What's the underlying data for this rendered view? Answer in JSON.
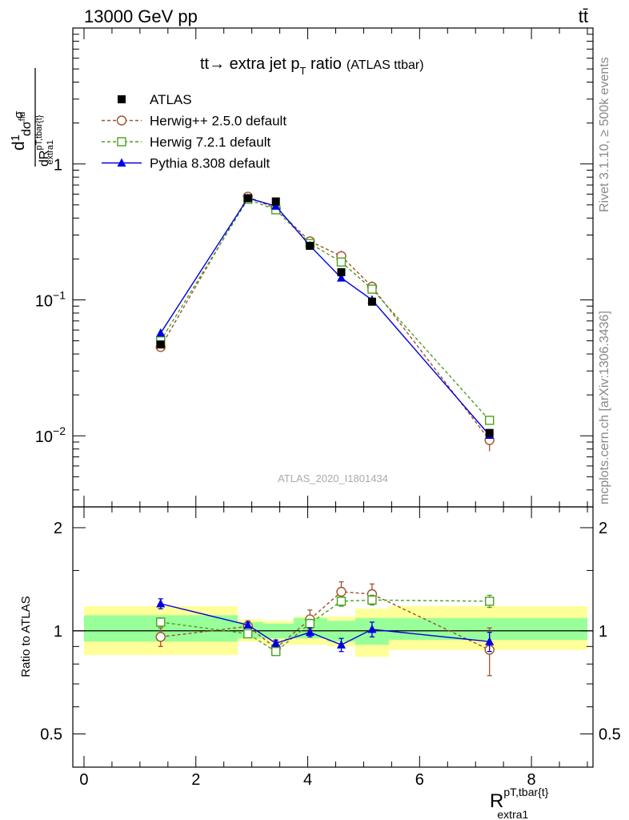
{
  "header": {
    "left": "13000 GeV pp",
    "right": "tt̄"
  },
  "side_texts": {
    "rivet": "Rivet 3.1.10, ≥ 500k events",
    "mcplots": "mcplots.cern.ch [arXiv:1306.3436]"
  },
  "colors": {
    "data": "#000000",
    "herwigpp": "#a0522d",
    "herwig7": "#4aa01e",
    "pythia": "#0000e0",
    "band_inner": "#99ff99",
    "band_outer": "#ffff99"
  },
  "chart_data": {
    "type": "scatter",
    "title": "tt̄ → extra jet p_T ratio",
    "title_parts": {
      "main": "tt→ extra jet p",
      "sub": "T",
      "rest": " ratio",
      "paren": "(ATLAS ttbar)"
    },
    "analysis_id": "ATLAS_2020_I1801434",
    "xlabel": {
      "base": "R",
      "sup": "pT,tbar{t}",
      "sub": "extra1"
    },
    "ylabel": {
      "num_a": "d",
      "num_sup": "fid",
      "den_a": "dR",
      "den_sup": "pT,tbar{t}",
      "den_sub": "extra1"
    },
    "ylabel_text": "1/σ dσ^fid / dR^{pT,tbar{t}}_extra1",
    "ratio_ylabel": "Ratio to ATLAS",
    "xlim": [
      -0.2,
      9.1
    ],
    "ylim": [
      0.003,
      10
    ],
    "yscale": "log",
    "ratio_ylim": [
      0.4,
      2.3
    ],
    "ratio_yscale": "log",
    "x_ticks": [
      0,
      2,
      4,
      6,
      8
    ],
    "x_tick_labels": [
      "0",
      "2",
      "4",
      "6",
      "8"
    ],
    "y_ticks": [
      {
        "value": 1,
        "base": "1",
        "exp": ""
      },
      {
        "value": 0.1,
        "base": "10",
        "exp": "−1"
      },
      {
        "value": 0.01,
        "base": "10",
        "exp": "−2"
      }
    ],
    "ratio_y_ticks": [
      {
        "value": 2,
        "label": "2"
      },
      {
        "value": 1,
        "label": "1"
      },
      {
        "value": 0.5,
        "label": "0.5"
      }
    ],
    "legend_position": "top-left",
    "bins": [
      {
        "lo": 0.0,
        "hi": 2.75,
        "inner": [
          0.93,
          1.11
        ],
        "outer": [
          0.85,
          1.18
        ]
      },
      {
        "lo": 2.75,
        "hi": 3.2,
        "inner": [
          0.95,
          1.06
        ],
        "outer": [
          0.93,
          1.08
        ]
      },
      {
        "lo": 3.2,
        "hi": 3.75,
        "inner": [
          0.95,
          1.05
        ],
        "outer": [
          0.91,
          1.07
        ]
      },
      {
        "lo": 3.75,
        "hi": 4.35,
        "inner": [
          0.95,
          1.09
        ],
        "outer": [
          0.91,
          1.1
        ]
      },
      {
        "lo": 4.35,
        "hi": 4.85,
        "inner": [
          0.93,
          1.07
        ],
        "outer": [
          0.9,
          1.1
        ]
      },
      {
        "lo": 4.85,
        "hi": 5.45,
        "inner": [
          0.91,
          1.09
        ],
        "outer": [
          0.84,
          1.16
        ]
      },
      {
        "lo": 5.45,
        "hi": 9.0,
        "inner": [
          0.94,
          1.09
        ],
        "outer": [
          0.88,
          1.18
        ]
      }
    ],
    "series": [
      {
        "name": "ATLAS",
        "key": "data",
        "marker": "square-filled",
        "dashed": false,
        "x": [
          1.37,
          2.93,
          3.43,
          4.04,
          4.6,
          5.15,
          7.25
        ],
        "y": [
          0.047,
          0.56,
          0.53,
          0.25,
          0.16,
          0.097,
          0.0105
        ],
        "err": [
          0.002,
          0.015,
          0.015,
          0.008,
          0.006,
          0.004,
          0.0007
        ]
      },
      {
        "name": "Herwig++ 2.5.0 default",
        "key": "herwigpp",
        "marker": "circle-open",
        "dashed": true,
        "x": [
          1.37,
          2.93,
          3.43,
          4.04,
          4.6,
          5.15,
          7.25
        ],
        "y": [
          0.045,
          0.575,
          0.47,
          0.27,
          0.21,
          0.125,
          0.0093
        ],
        "err": [
          0.003,
          0.025,
          0.02,
          0.015,
          0.02,
          0.012,
          0.0016
        ],
        "ratio": [
          0.96,
          1.03,
          0.89,
          1.08,
          1.3,
          1.28,
          0.88
        ],
        "ratio_err": [
          0.06,
          0.04,
          0.04,
          0.07,
          0.09,
          0.09,
          0.14
        ]
      },
      {
        "name": "Herwig 7.2.1 default",
        "key": "herwig7",
        "marker": "square-open",
        "dashed": true,
        "x": [
          1.37,
          2.93,
          3.43,
          4.04,
          4.6,
          5.15,
          7.25
        ],
        "y": [
          0.05,
          0.55,
          0.46,
          0.26,
          0.19,
          0.12,
          0.013
        ],
        "err": [
          0.002,
          0.012,
          0.012,
          0.008,
          0.008,
          0.006,
          0.0008
        ],
        "ratio": [
          1.06,
          0.98,
          0.87,
          1.05,
          1.22,
          1.23,
          1.22
        ],
        "ratio_err": [
          0.03,
          0.02,
          0.02,
          0.03,
          0.04,
          0.04,
          0.05
        ]
      },
      {
        "name": "Pythia 8.308 default",
        "key": "pythia",
        "marker": "triangle-filled",
        "dashed": false,
        "x": [
          1.37,
          2.93,
          3.43,
          4.04,
          4.6,
          5.15,
          7.25
        ],
        "y": [
          0.057,
          0.56,
          0.49,
          0.25,
          0.145,
          0.1,
          0.0101
        ],
        "err": [
          0.002,
          0.01,
          0.01,
          0.006,
          0.005,
          0.004,
          0.0006
        ],
        "ratio": [
          1.2,
          1.04,
          0.92,
          0.99,
          0.91,
          1.01,
          0.93
        ],
        "ratio_err": [
          0.04,
          0.02,
          0.02,
          0.03,
          0.04,
          0.05,
          0.06
        ]
      }
    ]
  }
}
